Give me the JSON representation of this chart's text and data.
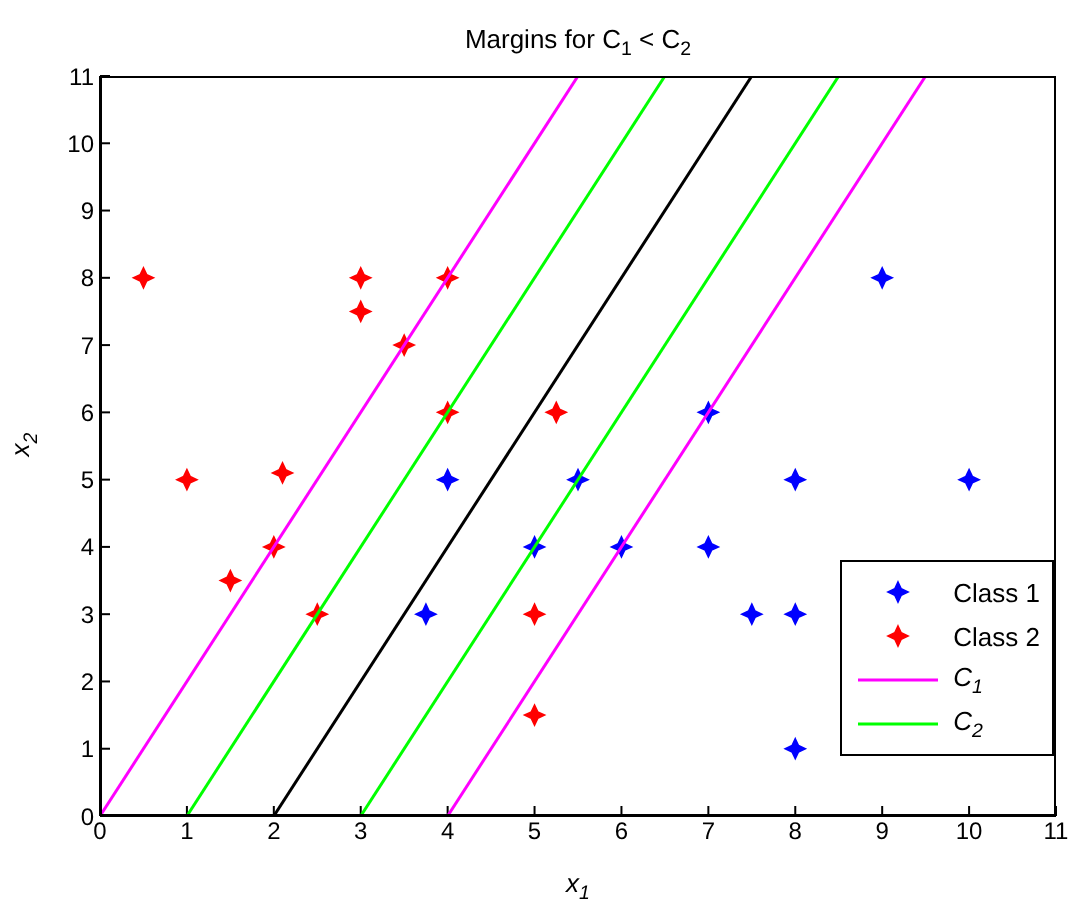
{
  "chart_data": {
    "type": "scatter",
    "title": "Margins for C$_{1}$ < C$_{2}$",
    "xlabel": "x$_{1}$",
    "ylabel": "x$_{2}$",
    "xlim": [
      0,
      11
    ],
    "ylim": [
      0,
      11
    ],
    "xticks": [
      0,
      1,
      2,
      3,
      4,
      5,
      6,
      7,
      8,
      9,
      10,
      11
    ],
    "yticks": [
      0,
      1,
      2,
      3,
      4,
      5,
      6,
      7,
      8,
      9,
      10,
      11
    ],
    "grid": false,
    "legend": "bottom right",
    "marker": "star",
    "series": [
      {
        "name": "Class 1",
        "type": "scatter",
        "color": "#0000ff",
        "x": [
          9,
          7,
          4,
          5.5,
          8,
          10,
          5,
          6,
          7,
          3.75,
          7.5,
          8,
          8
        ],
        "values": [
          8,
          6,
          5,
          5,
          5,
          5,
          4,
          4,
          4,
          3,
          3,
          3,
          1
        ]
      },
      {
        "name": "Class 2",
        "type": "scatter",
        "color": "#ff0000",
        "x": [
          0.5,
          3,
          4,
          3,
          3.5,
          4,
          5.25,
          1,
          2.1,
          2,
          1.5,
          2.5,
          5,
          5
        ],
        "values": [
          8,
          8,
          8,
          7.5,
          7,
          6,
          6,
          5,
          5.1,
          4,
          3.5,
          3,
          3,
          1.5
        ]
      },
      {
        "name": "C$_{1}$",
        "type": "line",
        "marker": "none",
        "color": "#ff00ff",
        "x": [
          0,
          5.5
        ],
        "values": [
          0,
          11
        ]
      },
      {
        "name": "C$_{2}$",
        "type": "line",
        "marker": "none",
        "color": "#00ff00",
        "x": [
          1,
          6.5
        ],
        "values": [
          0,
          11
        ]
      },
      {
        "type": "line",
        "marker": "none",
        "color": "#000000",
        "x": [
          2,
          7.5
        ],
        "values": [
          0,
          11
        ]
      },
      {
        "type": "line",
        "marker": "none",
        "color": "#00ff00",
        "x": [
          3,
          8.5
        ],
        "values": [
          0,
          11
        ]
      },
      {
        "type": "line",
        "marker": "none",
        "color": "#ff00ff",
        "x": [
          4,
          9.5
        ],
        "values": [
          0,
          11
        ]
      }
    ]
  }
}
